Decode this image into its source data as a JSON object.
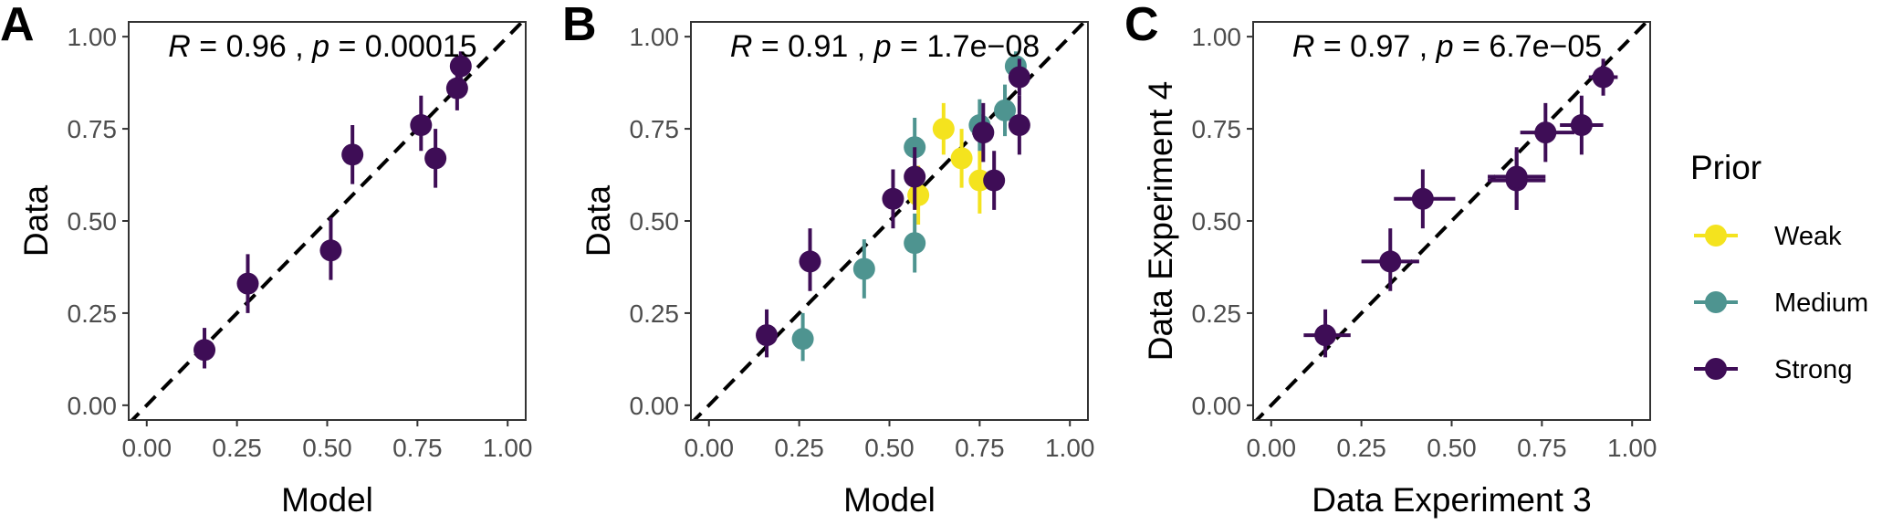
{
  "colors": {
    "Weak": "#f4e31e",
    "Medium": "#4e9490",
    "Strong": "#3e0d56"
  },
  "legend": {
    "title": "Prior",
    "items": [
      {
        "label": "Weak",
        "color_key": "Weak"
      },
      {
        "label": "Medium",
        "color_key": "Medium"
      },
      {
        "label": "Strong",
        "color_key": "Strong"
      }
    ]
  },
  "chart_data": [
    {
      "type": "scatter",
      "panel_label": "A",
      "xlabel": "Model",
      "ylabel": "Data",
      "xlim": [
        -0.05,
        1.05
      ],
      "ylim": [
        -0.04,
        1.04
      ],
      "ticks": [
        0,
        0.25,
        0.5,
        0.75,
        1
      ],
      "tick_labels": [
        "0.00",
        "0.25",
        "0.50",
        "0.75",
        "1.00"
      ],
      "reference_line": "y = x (dashed)",
      "stats": {
        "r_value": "0.96",
        "p_value": "0.00015"
      },
      "series": [
        {
          "name": "Strong",
          "points": [
            {
              "x": 0.16,
              "y": 0.15,
              "ylo": 0.1,
              "yhi": 0.21
            },
            {
              "x": 0.28,
              "y": 0.33,
              "ylo": 0.25,
              "yhi": 0.41
            },
            {
              "x": 0.51,
              "y": 0.42,
              "ylo": 0.34,
              "yhi": 0.51
            },
            {
              "x": 0.57,
              "y": 0.68,
              "ylo": 0.6,
              "yhi": 0.76
            },
            {
              "x": 0.76,
              "y": 0.76,
              "ylo": 0.69,
              "yhi": 0.84
            },
            {
              "x": 0.8,
              "y": 0.67,
              "ylo": 0.59,
              "yhi": 0.75
            },
            {
              "x": 0.86,
              "y": 0.86,
              "ylo": 0.8,
              "yhi": 0.92
            },
            {
              "x": 0.87,
              "y": 0.92,
              "ylo": 0.88,
              "yhi": 0.96
            }
          ]
        }
      ]
    },
    {
      "type": "scatter",
      "panel_label": "B",
      "xlabel": "Model",
      "ylabel": "Data",
      "xlim": [
        -0.05,
        1.05
      ],
      "ylim": [
        -0.04,
        1.04
      ],
      "ticks": [
        0,
        0.25,
        0.5,
        0.75,
        1
      ],
      "tick_labels": [
        "0.00",
        "0.25",
        "0.50",
        "0.75",
        "1.00"
      ],
      "reference_line": "y = x (dashed)",
      "stats": {
        "r_value": "0.91",
        "p_value": "1.7e−08"
      },
      "series": [
        {
          "name": "Weak",
          "points": [
            {
              "x": 0.58,
              "y": 0.57,
              "ylo": 0.49,
              "yhi": 0.65
            },
            {
              "x": 0.65,
              "y": 0.75,
              "ylo": 0.68,
              "yhi": 0.82
            },
            {
              "x": 0.7,
              "y": 0.67,
              "ylo": 0.59,
              "yhi": 0.75
            },
            {
              "x": 0.75,
              "y": 0.61,
              "ylo": 0.52,
              "yhi": 0.69
            }
          ]
        },
        {
          "name": "Medium",
          "points": [
            {
              "x": 0.26,
              "y": 0.18,
              "ylo": 0.12,
              "yhi": 0.25
            },
            {
              "x": 0.43,
              "y": 0.37,
              "ylo": 0.29,
              "yhi": 0.45
            },
            {
              "x": 0.57,
              "y": 0.44,
              "ylo": 0.36,
              "yhi": 0.52
            },
            {
              "x": 0.57,
              "y": 0.7,
              "ylo": 0.62,
              "yhi": 0.78
            },
            {
              "x": 0.75,
              "y": 0.76,
              "ylo": 0.69,
              "yhi": 0.83
            },
            {
              "x": 0.82,
              "y": 0.8,
              "ylo": 0.73,
              "yhi": 0.87
            },
            {
              "x": 0.85,
              "y": 0.92,
              "ylo": 0.88,
              "yhi": 0.96
            }
          ]
        },
        {
          "name": "Strong",
          "points": [
            {
              "x": 0.16,
              "y": 0.19,
              "ylo": 0.13,
              "yhi": 0.26
            },
            {
              "x": 0.28,
              "y": 0.39,
              "ylo": 0.31,
              "yhi": 0.48
            },
            {
              "x": 0.51,
              "y": 0.56,
              "ylo": 0.48,
              "yhi": 0.64
            },
            {
              "x": 0.57,
              "y": 0.62,
              "ylo": 0.53,
              "yhi": 0.7
            },
            {
              "x": 0.76,
              "y": 0.74,
              "ylo": 0.66,
              "yhi": 0.82
            },
            {
              "x": 0.79,
              "y": 0.61,
              "ylo": 0.53,
              "yhi": 0.69
            },
            {
              "x": 0.86,
              "y": 0.76,
              "ylo": 0.68,
              "yhi": 0.84
            },
            {
              "x": 0.86,
              "y": 0.89,
              "ylo": 0.84,
              "yhi": 0.94
            }
          ]
        }
      ]
    },
    {
      "type": "scatter",
      "panel_label": "C",
      "xlabel": "Data Experiment 3",
      "ylabel": "Data Experiment 4",
      "xlim": [
        -0.05,
        1.05
      ],
      "ylim": [
        -0.04,
        1.04
      ],
      "ticks": [
        0,
        0.25,
        0.5,
        0.75,
        1
      ],
      "tick_labels": [
        "0.00",
        "0.25",
        "0.50",
        "0.75",
        "1.00"
      ],
      "reference_line": "y = x (dashed)",
      "stats": {
        "r_value": "0.97",
        "p_value": "6.7e−05"
      },
      "series": [
        {
          "name": "Strong",
          "points": [
            {
              "x": 0.15,
              "y": 0.19,
              "xlo": 0.09,
              "xhi": 0.22,
              "ylo": 0.13,
              "yhi": 0.26
            },
            {
              "x": 0.33,
              "y": 0.39,
              "xlo": 0.25,
              "xhi": 0.41,
              "ylo": 0.31,
              "yhi": 0.48
            },
            {
              "x": 0.42,
              "y": 0.56,
              "xlo": 0.34,
              "xhi": 0.51,
              "ylo": 0.48,
              "yhi": 0.64
            },
            {
              "x": 0.68,
              "y": 0.61,
              "xlo": 0.6,
              "xhi": 0.76,
              "ylo": 0.53,
              "yhi": 0.69
            },
            {
              "x": 0.68,
              "y": 0.62,
              "xlo": 0.6,
              "xhi": 0.76,
              "ylo": 0.53,
              "yhi": 0.7
            },
            {
              "x": 0.76,
              "y": 0.74,
              "xlo": 0.69,
              "xhi": 0.84,
              "ylo": 0.66,
              "yhi": 0.82
            },
            {
              "x": 0.86,
              "y": 0.76,
              "xlo": 0.8,
              "xhi": 0.92,
              "ylo": 0.68,
              "yhi": 0.84
            },
            {
              "x": 0.92,
              "y": 0.89,
              "xlo": 0.88,
              "xhi": 0.96,
              "ylo": 0.84,
              "yhi": 0.94
            }
          ]
        }
      ]
    }
  ]
}
